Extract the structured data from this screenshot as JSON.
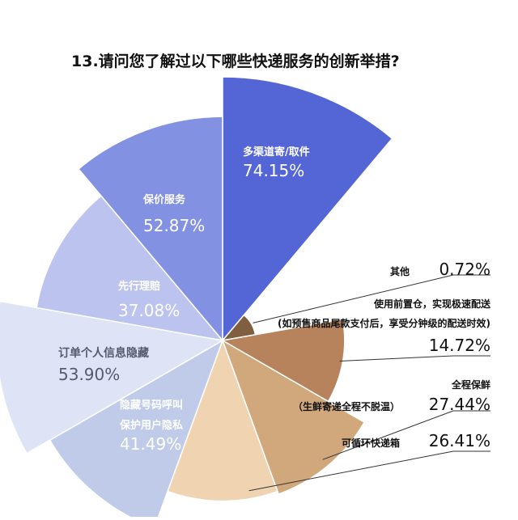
{
  "chart_data": {
    "type": "pie",
    "title": "13.请问您了解过以下哪些快递服务的创新举措?",
    "slices": [
      {
        "label": "多渠道寄/取件",
        "value": 74.15,
        "value_text": "74.15%",
        "color": "#5466d6"
      },
      {
        "label": "其他",
        "value": 0.72,
        "value_text": "0.72%",
        "color": "#7f5f3f"
      },
      {
        "label": "使用前置仓，实现极速配送",
        "label2": "(如预售商品尾款支付后，享受分钟级的配送时效)",
        "value": 14.72,
        "value_text": "14.72%",
        "color": "#b6835c"
      },
      {
        "label": "全程保鲜",
        "label2": "（生鲜寄递全程不脱温）",
        "value": 27.44,
        "value_text": "27.44%",
        "color": "#d0a87b"
      },
      {
        "label": "可循环快递箱",
        "value": 26.41,
        "value_text": "26.41%",
        "color": "#f0d3b1"
      },
      {
        "label": "隐藏号码呼叫",
        "label2": "保护用户隐私",
        "value": 41.49,
        "value_text": "41.49%",
        "color": "#bfcbe8"
      },
      {
        "label": "订单个人信息隐藏",
        "value": 53.9,
        "value_text": "53.90%",
        "color": "#dfe3f6"
      },
      {
        "label": "先行理赔",
        "value": 37.08,
        "value_text": "37.08%",
        "color": "#bcc3ee"
      },
      {
        "label": "保价服务",
        "value": 52.87,
        "value_text": "52.87%",
        "color": "#8391e3"
      }
    ]
  }
}
